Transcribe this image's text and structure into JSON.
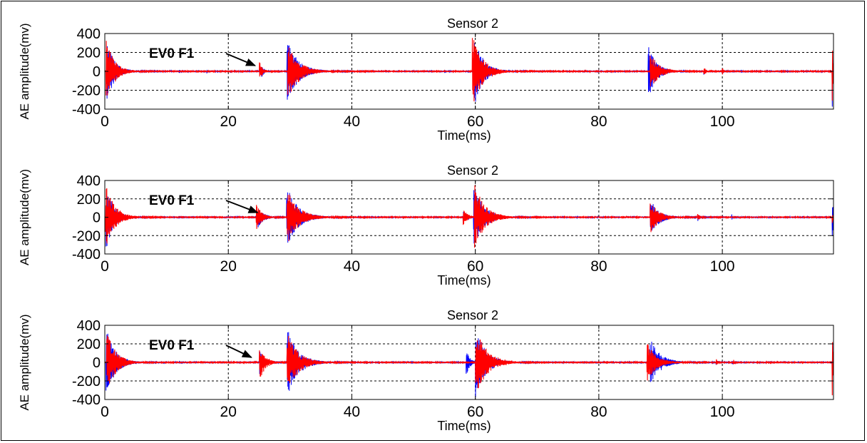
{
  "figure": {
    "panels": [
      {
        "title": "Sensor 2",
        "xlabel": "Time(ms)",
        "ylabel": "AE amplitude(mv)",
        "annotation": "EV0 F1"
      },
      {
        "title": "Sensor 2",
        "xlabel": "Time(ms)",
        "ylabel": "AE amplitude(mv)",
        "annotation": "EV0 F1"
      },
      {
        "title": "Sensor 2",
        "xlabel": "Time(ms)",
        "ylabel": "AE amplitude(mv)",
        "annotation": "EV0 F1"
      }
    ]
  },
  "chart_data": [
    {
      "type": "line",
      "title": "Sensor 2",
      "xlabel": "Time(ms)",
      "ylabel": "AE amplitude(mv)",
      "xlim": [
        0,
        118
      ],
      "ylim": [
        -400,
        400
      ],
      "xticks": [
        0,
        20,
        40,
        60,
        80,
        100
      ],
      "yticks": [
        400,
        200,
        0,
        -200,
        -400
      ],
      "grid": true,
      "annotation": {
        "text": "EV0 F1",
        "points_to_x": 24.8
      },
      "series": [
        {
          "color": "#0000ff",
          "bursts": [
            {
              "t": 0.3,
              "amp": 330,
              "dur": 3.5
            },
            {
              "t": 12,
              "amp": 30,
              "dur": 0.5
            },
            {
              "t": 16.5,
              "amp": 25,
              "dur": 0.4
            },
            {
              "t": 25.3,
              "amp": 80,
              "dur": 1.2
            },
            {
              "t": 29.5,
              "amp": 330,
              "dur": 5
            },
            {
              "t": 42,
              "amp": 15,
              "dur": 0.4
            },
            {
              "t": 59.8,
              "amp": 380,
              "dur": 4
            },
            {
              "t": 88,
              "amp": 300,
              "dur": 3.5
            },
            {
              "t": 97,
              "amp": 40,
              "dur": 0.8
            },
            {
              "t": 100,
              "amp": 35,
              "dur": 0.6
            },
            {
              "t": 117.8,
              "amp": 380,
              "dur": 0.4
            }
          ]
        },
        {
          "color": "#ff0000",
          "bursts": [
            {
              "t": 0.2,
              "amp": 360,
              "dur": 3.5
            },
            {
              "t": 25,
              "amp": 110,
              "dur": 1.5
            },
            {
              "t": 29.6,
              "amp": 300,
              "dur": 5
            },
            {
              "t": 42,
              "amp": 15,
              "dur": 0.5
            },
            {
              "t": 59.5,
              "amp": 400,
              "dur": 4.5
            },
            {
              "t": 88.3,
              "amp": 200,
              "dur": 4
            },
            {
              "t": 97,
              "amp": 50,
              "dur": 1
            },
            {
              "t": 100,
              "amp": 40,
              "dur": 0.6
            },
            {
              "t": 117.8,
              "amp": 400,
              "dur": 0.4
            }
          ]
        }
      ]
    },
    {
      "type": "line",
      "title": "Sensor 2",
      "xlabel": "Time(ms)",
      "ylabel": "AE amplitude(mv)",
      "xlim": [
        0,
        118
      ],
      "ylim": [
        -400,
        400
      ],
      "xticks": [
        0,
        20,
        40,
        60,
        80,
        100
      ],
      "yticks": [
        400,
        200,
        0,
        -200,
        -400
      ],
      "grid": true,
      "annotation": {
        "text": "EV0 F1",
        "points_to_x": 25.2
      },
      "series": [
        {
          "color": "#0000ff",
          "bursts": [
            {
              "t": 0.2,
              "amp": 350,
              "dur": 3.5
            },
            {
              "t": 12,
              "amp": 30,
              "dur": 0.5
            },
            {
              "t": 24.8,
              "amp": 120,
              "dur": 2.5
            },
            {
              "t": 29.4,
              "amp": 350,
              "dur": 5
            },
            {
              "t": 42,
              "amp": 20,
              "dur": 0.5
            },
            {
              "t": 58,
              "amp": 80,
              "dur": 2
            },
            {
              "t": 59.7,
              "amp": 360,
              "dur": 4.5
            },
            {
              "t": 88.3,
              "amp": 200,
              "dur": 4
            },
            {
              "t": 96,
              "amp": 40,
              "dur": 1
            },
            {
              "t": 101.5,
              "amp": 30,
              "dur": 0.5
            },
            {
              "t": 117.8,
              "amp": 300,
              "dur": 0.4
            }
          ]
        },
        {
          "color": "#ff0000",
          "bursts": [
            {
              "t": 0.1,
              "amp": 380,
              "dur": 4
            },
            {
              "t": 24.5,
              "amp": 160,
              "dur": 2.5
            },
            {
              "t": 29.5,
              "amp": 320,
              "dur": 5
            },
            {
              "t": 42,
              "amp": 20,
              "dur": 0.5
            },
            {
              "t": 58,
              "amp": 100,
              "dur": 2
            },
            {
              "t": 59.8,
              "amp": 400,
              "dur": 4.5
            },
            {
              "t": 88.3,
              "amp": 180,
              "dur": 4
            },
            {
              "t": 96,
              "amp": 40,
              "dur": 1
            },
            {
              "t": 117.8,
              "amp": 60,
              "dur": 0.4
            }
          ]
        }
      ]
    },
    {
      "type": "line",
      "title": "Sensor 2",
      "xlabel": "Time(ms)",
      "ylabel": "AE amplitude(mv)",
      "xlim": [
        0,
        118
      ],
      "ylim": [
        -400,
        400
      ],
      "xticks": [
        0,
        20,
        40,
        60,
        80,
        100
      ],
      "yticks": [
        400,
        200,
        0,
        -200,
        -400
      ],
      "grid": true,
      "annotation": {
        "text": "EV0 F1",
        "points_to_x": 24.2
      },
      "series": [
        {
          "color": "#0000ff",
          "bursts": [
            {
              "t": 0.2,
              "amp": 380,
              "dur": 4
            },
            {
              "t": 12,
              "amp": 30,
              "dur": 0.5
            },
            {
              "t": 25,
              "amp": 140,
              "dur": 2
            },
            {
              "t": 29.5,
              "amp": 380,
              "dur": 5
            },
            {
              "t": 42,
              "amp": 25,
              "dur": 0.5
            },
            {
              "t": 58.5,
              "amp": 180,
              "dur": 1.5
            },
            {
              "t": 60,
              "amp": 400,
              "dur": 4.5
            },
            {
              "t": 88.3,
              "amp": 260,
              "dur": 4.5
            },
            {
              "t": 99,
              "amp": 30,
              "dur": 0.5
            },
            {
              "t": 101.5,
              "amp": 40,
              "dur": 0.5
            },
            {
              "t": 117.8,
              "amp": 280,
              "dur": 0.4
            }
          ]
        },
        {
          "color": "#ff0000",
          "bursts": [
            {
              "t": 0.3,
              "amp": 350,
              "dur": 4
            },
            {
              "t": 25,
              "amp": 220,
              "dur": 2.5
            },
            {
              "t": 29.5,
              "amp": 330,
              "dur": 5
            },
            {
              "t": 42,
              "amp": 20,
              "dur": 0.5
            },
            {
              "t": 60,
              "amp": 400,
              "dur": 5
            },
            {
              "t": 87.8,
              "amp": 220,
              "dur": 4
            },
            {
              "t": 99,
              "amp": 40,
              "dur": 0.6
            },
            {
              "t": 101.8,
              "amp": 30,
              "dur": 0.5
            },
            {
              "t": 117.8,
              "amp": 400,
              "dur": 0.4
            }
          ]
        }
      ]
    }
  ]
}
